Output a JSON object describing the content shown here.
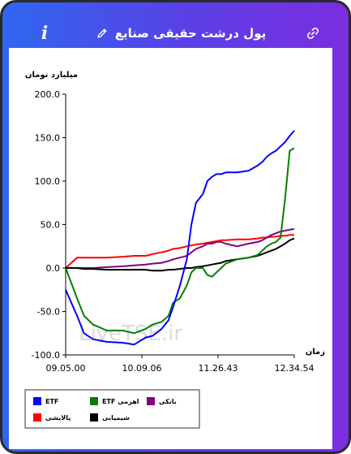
{
  "header": {
    "title": "پول درشت حقیقی صنایع",
    "info_icon": "info-icon",
    "edit_icon": "pencil-icon",
    "share_icon": "link-icon"
  },
  "colors": {
    "header_gradient_start": "#2f66f2",
    "header_gradient_end": "#7b2ee0",
    "etf": "#0000ff",
    "etf_leverage": "#008000",
    "bank": "#800080",
    "refinery": "#ff0000",
    "chemical": "#000000"
  },
  "chart_data": {
    "type": "line",
    "title": "",
    "ylabel": "میلیارد تومان",
    "xlabel": "زمان",
    "ylim": [
      -100,
      200
    ],
    "yticks": [
      "200.0",
      "150.0",
      "100.0",
      "50.0",
      "0.0",
      "-50.0",
      "-100.0"
    ],
    "xticks": [
      "09.05.00",
      "10.09.06",
      "11.26.43",
      "12.34.54"
    ],
    "grid": false,
    "legend_position": "bottom",
    "watermark": "LiveTSE.ir",
    "x": [
      0,
      0.05,
      0.08,
      0.12,
      0.18,
      0.25,
      0.3,
      0.35,
      0.38,
      0.42,
      0.45,
      0.47,
      0.5,
      0.53,
      0.55,
      0.57,
      0.6,
      0.62,
      0.64,
      0.66,
      0.68,
      0.7,
      0.75,
      0.8,
      0.84,
      0.86,
      0.88,
      0.9,
      0.92,
      0.94,
      0.96,
      0.98,
      1.0
    ],
    "series": [
      {
        "name": "ETF",
        "key": "etf",
        "values": [
          -25,
          -55,
          -75,
          -82,
          -85,
          -86,
          -88,
          -80,
          -78,
          -70,
          -60,
          -45,
          -20,
          10,
          50,
          75,
          85,
          100,
          105,
          108,
          108,
          110,
          110,
          112,
          118,
          122,
          128,
          132,
          135,
          140,
          145,
          152,
          158
        ]
      },
      {
        "name": "ETF اهرمی",
        "key": "etf_leverage",
        "values": [
          0,
          -35,
          -55,
          -65,
          -72,
          -72,
          -75,
          -70,
          -65,
          -62,
          -55,
          -40,
          -35,
          -20,
          -5,
          0,
          0,
          -8,
          -10,
          -5,
          0,
          5,
          10,
          12,
          15,
          20,
          25,
          28,
          30,
          35,
          80,
          135,
          138
        ]
      },
      {
        "name": "بانکی",
        "key": "bank",
        "values": [
          0,
          0,
          0,
          0,
          1,
          2,
          3,
          4,
          5,
          6,
          8,
          10,
          12,
          14,
          18,
          22,
          25,
          28,
          28,
          30,
          30,
          28,
          25,
          28,
          30,
          32,
          35,
          38,
          40,
          42,
          43,
          44,
          45
        ]
      },
      {
        "name": "پالایشی",
        "key": "refinery",
        "values": [
          0,
          12,
          12,
          12,
          12,
          13,
          14,
          14,
          16,
          18,
          20,
          22,
          23,
          25,
          26,
          27,
          28,
          29,
          30,
          31,
          32,
          32,
          33,
          33,
          34,
          35,
          35,
          36,
          36,
          37,
          37,
          38,
          38
        ]
      },
      {
        "name": "شیمیایی",
        "key": "chemical",
        "values": [
          0,
          0,
          -1,
          -1,
          -2,
          -2,
          -2,
          -2,
          -3,
          -3,
          -2,
          -2,
          -1,
          0,
          0,
          1,
          2,
          3,
          4,
          5,
          6,
          8,
          10,
          12,
          14,
          16,
          18,
          20,
          22,
          25,
          28,
          32,
          34
        ]
      }
    ]
  }
}
